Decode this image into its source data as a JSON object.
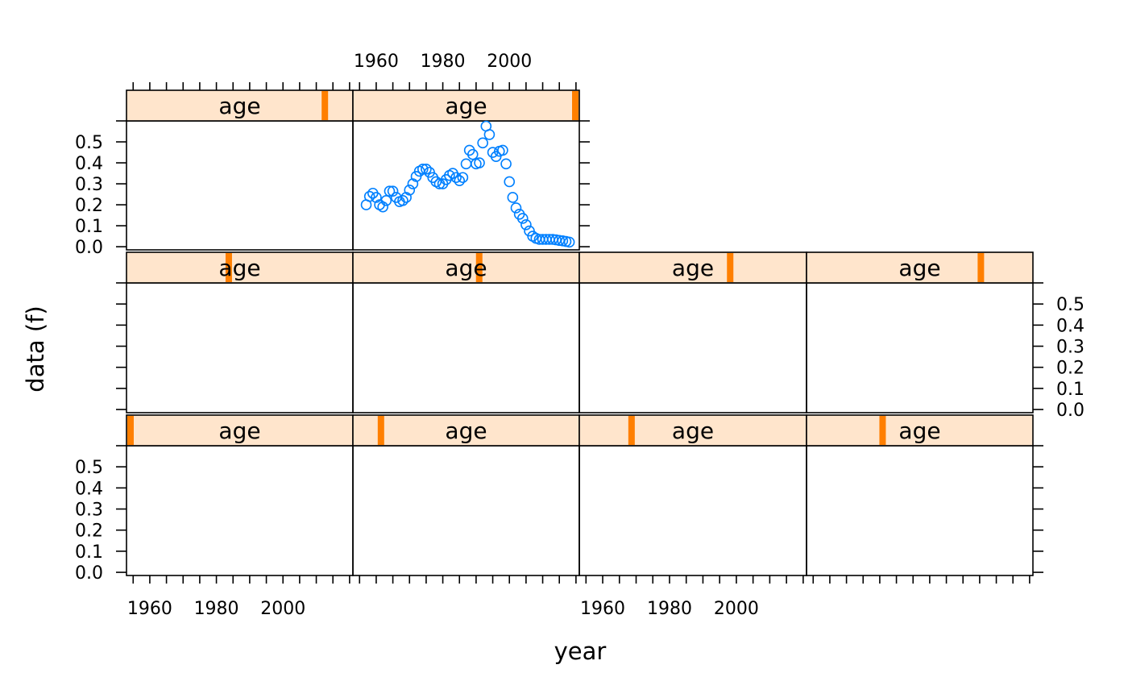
{
  "chart_data": {
    "type": "scatter",
    "layout": "lattice 4 columns x 3 rows, top row has 2 panels",
    "xlabel": "year",
    "ylabel": "data (f)",
    "xlim": [
      1953,
      2021
    ],
    "ylim": [
      -0.015,
      0.6
    ],
    "x_ticks": [
      1955,
      1960,
      1965,
      1970,
      1975,
      1980,
      1985,
      1990,
      1995,
      2000,
      2005,
      2010,
      2015,
      2020
    ],
    "x_tick_labels": [
      "1960",
      "1980",
      "2000"
    ],
    "x_tick_label_values": [
      1960,
      1980,
      2000
    ],
    "y_ticks": [
      0.0,
      0.1,
      0.2,
      0.3,
      0.4,
      0.5
    ],
    "y_tick_labels": [
      "0.0",
      "0.1",
      "0.2",
      "0.3",
      "0.4",
      "0.5"
    ],
    "point_color": "#0080ff",
    "strip_color": "#ffe5cc",
    "strip_marker_color": "#ff7f00",
    "panels": [
      {
        "label": "age",
        "row": 0,
        "col": 0,
        "age_level": 0.89,
        "points": []
      },
      {
        "label": "age",
        "row": 0,
        "col": 1,
        "age_level": 1.0,
        "points": [
          [
            1957,
            0.2
          ],
          [
            1958,
            0.24
          ],
          [
            1959,
            0.255
          ],
          [
            1960,
            0.235
          ],
          [
            1961,
            0.2
          ],
          [
            1962,
            0.19
          ],
          [
            1963,
            0.22
          ],
          [
            1964,
            0.265
          ],
          [
            1965,
            0.265
          ],
          [
            1966,
            0.235
          ],
          [
            1967,
            0.215
          ],
          [
            1968,
            0.22
          ],
          [
            1969,
            0.235
          ],
          [
            1970,
            0.27
          ],
          [
            1971,
            0.3
          ],
          [
            1972,
            0.335
          ],
          [
            1973,
            0.36
          ],
          [
            1974,
            0.37
          ],
          [
            1975,
            0.37
          ],
          [
            1976,
            0.355
          ],
          [
            1977,
            0.33
          ],
          [
            1978,
            0.31
          ],
          [
            1979,
            0.3
          ],
          [
            1980,
            0.3
          ],
          [
            1981,
            0.32
          ],
          [
            1982,
            0.34
          ],
          [
            1983,
            0.35
          ],
          [
            1984,
            0.33
          ],
          [
            1985,
            0.315
          ],
          [
            1986,
            0.33
          ],
          [
            1987,
            0.395
          ],
          [
            1988,
            0.46
          ],
          [
            1989,
            0.44
          ],
          [
            1990,
            0.395
          ],
          [
            1991,
            0.4
          ],
          [
            1992,
            0.495
          ],
          [
            1993,
            0.575
          ],
          [
            1994,
            0.535
          ],
          [
            1995,
            0.45
          ],
          [
            1996,
            0.43
          ],
          [
            1997,
            0.455
          ],
          [
            1998,
            0.46
          ],
          [
            1999,
            0.395
          ],
          [
            2000,
            0.31
          ],
          [
            2001,
            0.235
          ],
          [
            2002,
            0.185
          ],
          [
            2003,
            0.155
          ],
          [
            2004,
            0.135
          ],
          [
            2005,
            0.105
          ],
          [
            2006,
            0.075
          ],
          [
            2007,
            0.05
          ],
          [
            2008,
            0.04
          ],
          [
            2009,
            0.035
          ],
          [
            2010,
            0.035
          ],
          [
            2011,
            0.035
          ],
          [
            2012,
            0.035
          ],
          [
            2013,
            0.035
          ],
          [
            2014,
            0.033
          ],
          [
            2015,
            0.03
          ],
          [
            2016,
            0.028
          ],
          [
            2017,
            0.025
          ],
          [
            2018,
            0.022
          ]
        ]
      },
      {
        "label": "age",
        "row": 1,
        "col": 0,
        "age_level": 0.45,
        "points": []
      },
      {
        "label": "age",
        "row": 1,
        "col": 1,
        "age_level": 0.56,
        "points": []
      },
      {
        "label": "age",
        "row": 1,
        "col": 2,
        "age_level": 0.67,
        "points": []
      },
      {
        "label": "age",
        "row": 1,
        "col": 3,
        "age_level": 0.78,
        "points": []
      },
      {
        "label": "age",
        "row": 2,
        "col": 0,
        "age_level": 0.0,
        "points": []
      },
      {
        "label": "age",
        "row": 2,
        "col": 1,
        "age_level": 0.11,
        "points": []
      },
      {
        "label": "age",
        "row": 2,
        "col": 2,
        "age_level": 0.22,
        "points": []
      },
      {
        "label": "age",
        "row": 2,
        "col": 3,
        "age_level": 0.33,
        "points": []
      }
    ]
  }
}
